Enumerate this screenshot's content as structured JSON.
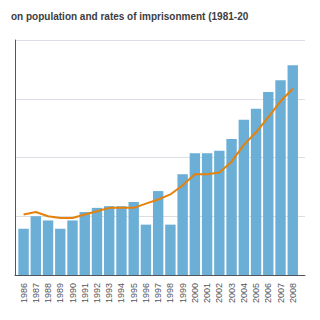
{
  "chart_data": {
    "type": "bar",
    "title": "on population and rates of imprisonment (1981-20",
    "x": [
      1986,
      1987,
      1988,
      1989,
      1990,
      1991,
      1992,
      1993,
      1994,
      1995,
      1996,
      1997,
      1998,
      1999,
      2000,
      2001,
      2002,
      2003,
      2004,
      2005,
      2006,
      2007,
      2008
    ],
    "series": [
      {
        "type": "bar",
        "color": "#6baed6",
        "values": [
          55,
          70,
          65,
          55,
          65,
          75,
          80,
          82,
          82,
          87,
          60,
          100,
          60,
          120,
          145,
          145,
          148,
          162,
          185,
          198,
          218,
          232,
          250
        ]
      },
      {
        "type": "line",
        "color": "#e6820a",
        "values": [
          72,
          75,
          70,
          68,
          68,
          72,
          76,
          80,
          80,
          80,
          85,
          90,
          96,
          107,
          120,
          120,
          122,
          135,
          155,
          170,
          188,
          207,
          222
        ]
      }
    ],
    "xlim": [
      1985.3,
      2009.0
    ],
    "xticks": [
      1986,
      1987,
      1988,
      1989,
      1990,
      1991,
      1992,
      1993,
      1994,
      1995,
      1996,
      1997,
      1998,
      1999,
      2000,
      2001,
      2002,
      2003,
      2004,
      2005,
      2006,
      2007,
      2008
    ],
    "ylim": [
      0,
      280
    ],
    "yticks": [
      0,
      70,
      140,
      210,
      280
    ],
    "grid": true,
    "tick_labels": "x"
  }
}
